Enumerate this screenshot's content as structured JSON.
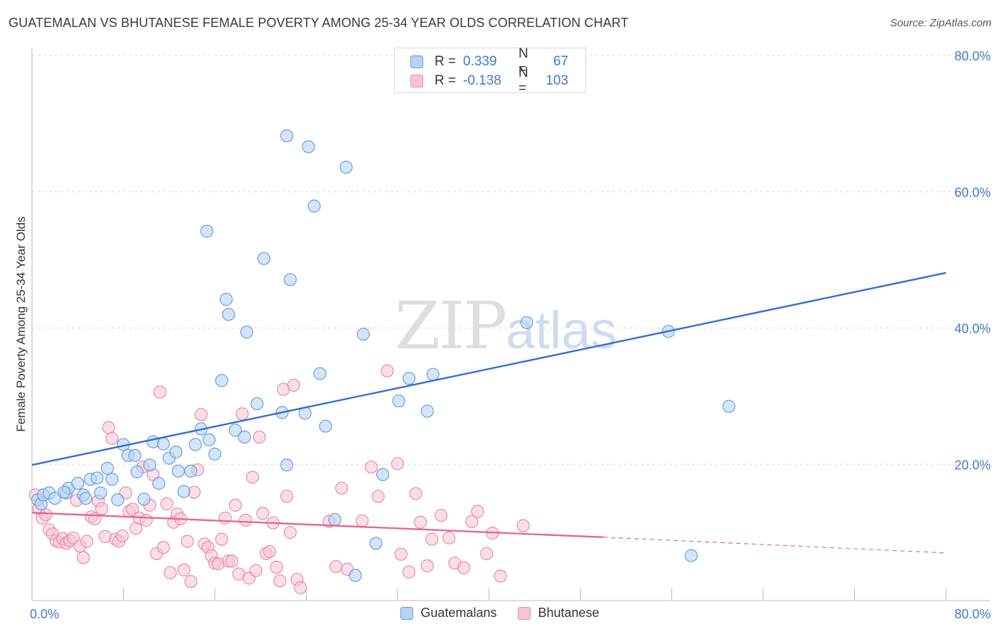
{
  "header": {
    "title": "GUATEMALAN VS BHUTANESE FEMALE POVERTY AMONG 25-34 YEAR OLDS CORRELATION CHART",
    "source": "Source: ZipAtlas.com"
  },
  "watermark": {
    "zip": "ZIP",
    "atlas": "atlas"
  },
  "legend": {
    "rows": [
      {
        "r_label": "R =",
        "r_value": "0.339",
        "n_label": "N =",
        "n_value": "67",
        "color": "#a9c8ef"
      },
      {
        "r_label": "R =",
        "r_value": "-0.138",
        "n_label": "N =",
        "n_value": "103",
        "color": "#f5b6c9"
      }
    ]
  },
  "bottom_legend": {
    "items": [
      {
        "label": "Guatemalans",
        "color": "#a9c8ef"
      },
      {
        "label": "Bhutanese",
        "color": "#f5b6c9"
      }
    ]
  },
  "colors": {
    "blue_fill": "#b8d3f3",
    "blue_stroke": "#6a9ee0",
    "blue_line": "#2f72cc",
    "pink_fill": "#f8c4d4",
    "pink_stroke": "#e98aab",
    "pink_line": "#e2689a",
    "grid": "#dcdcdc",
    "tick_text": "#3d7cc9"
  },
  "chart_data": {
    "type": "scatter",
    "title": "GUATEMALAN VS BHUTANESE FEMALE POVERTY AMONG 25-34 YEAR OLDS CORRELATION CHART",
    "xlabel": "",
    "ylabel": "Female Poverty Among 25-34 Year Olds",
    "xlim": [
      0,
      80
    ],
    "ylim": [
      0,
      80
    ],
    "x_tick_labels": [
      "0.0%",
      "80.0%"
    ],
    "y_tick_values": [
      20,
      40,
      60,
      80
    ],
    "y_tick_labels": [
      "20.0%",
      "40.0%",
      "60.0%",
      "80.0%"
    ],
    "grid": true,
    "series": [
      {
        "name": "Guatemalans",
        "r": 0.339,
        "n": 67,
        "trend": {
          "x": [
            0,
            80
          ],
          "y": [
            19.9,
            48.1
          ]
        },
        "points": [
          [
            0.5,
            14.8
          ],
          [
            0.8,
            14.2
          ],
          [
            1.0,
            15.5
          ],
          [
            1.5,
            15.8
          ],
          [
            2.0,
            15.0
          ],
          [
            3.0,
            15.8
          ],
          [
            3.2,
            16.5
          ],
          [
            4.0,
            17.2
          ],
          [
            4.5,
            15.5
          ],
          [
            4.7,
            15.0
          ],
          [
            5.1,
            17.8
          ],
          [
            5.7,
            18.0
          ],
          [
            6.0,
            15.8
          ],
          [
            6.6,
            19.4
          ],
          [
            7.0,
            17.8
          ],
          [
            7.5,
            14.8
          ],
          [
            8.0,
            22.9
          ],
          [
            8.4,
            21.3
          ],
          [
            9.0,
            21.3
          ],
          [
            9.2,
            18.9
          ],
          [
            9.8,
            14.9
          ],
          [
            10.3,
            19.9
          ],
          [
            10.6,
            23.3
          ],
          [
            11.1,
            17.2
          ],
          [
            11.5,
            23.0
          ],
          [
            12.0,
            20.9
          ],
          [
            12.6,
            21.8
          ],
          [
            12.8,
            19.0
          ],
          [
            13.3,
            16.0
          ],
          [
            13.9,
            19.0
          ],
          [
            14.3,
            22.9
          ],
          [
            14.8,
            25.2
          ],
          [
            15.5,
            23.6
          ],
          [
            15.3,
            54.2
          ],
          [
            16.0,
            21.5
          ],
          [
            16.6,
            32.3
          ],
          [
            17.0,
            44.2
          ],
          [
            17.2,
            42.0
          ],
          [
            17.8,
            25.0
          ],
          [
            18.6,
            24.0
          ],
          [
            18.8,
            39.4
          ],
          [
            19.7,
            28.9
          ],
          [
            20.3,
            50.2
          ],
          [
            21.9,
            27.6
          ],
          [
            22.3,
            19.9
          ],
          [
            22.6,
            47.1
          ],
          [
            22.3,
            68.2
          ],
          [
            23.9,
            27.5
          ],
          [
            24.2,
            66.6
          ],
          [
            24.7,
            57.9
          ],
          [
            25.2,
            33.3
          ],
          [
            25.7,
            25.6
          ],
          [
            26.5,
            11.9
          ],
          [
            27.5,
            63.6
          ],
          [
            28.3,
            3.7
          ],
          [
            29.0,
            39.1
          ],
          [
            30.1,
            8.4
          ],
          [
            30.7,
            18.5
          ],
          [
            32.1,
            29.3
          ],
          [
            33.0,
            32.6
          ],
          [
            34.6,
            27.8
          ],
          [
            35.1,
            33.2
          ],
          [
            43.3,
            40.8
          ],
          [
            55.7,
            39.5
          ],
          [
            61.0,
            28.5
          ],
          [
            57.7,
            6.6
          ],
          [
            2.8,
            15.9
          ]
        ]
      },
      {
        "name": "Bhutanese",
        "r": -0.138,
        "n": 103,
        "trend": {
          "x": [
            0,
            50
          ],
          "y": [
            12.9,
            9.3
          ]
        },
        "trend_dashed": {
          "x": [
            50,
            80
          ],
          "y": [
            9.3,
            7.0
          ]
        },
        "points": [
          [
            0.3,
            15.5
          ],
          [
            0.6,
            13.5
          ],
          [
            0.9,
            12.1
          ],
          [
            1.2,
            12.6
          ],
          [
            1.5,
            10.4
          ],
          [
            1.8,
            9.8
          ],
          [
            2.1,
            8.8
          ],
          [
            2.4,
            8.6
          ],
          [
            2.7,
            9.1
          ],
          [
            3.0,
            8.4
          ],
          [
            3.3,
            8.8
          ],
          [
            3.6,
            9.2
          ],
          [
            3.9,
            14.7
          ],
          [
            4.2,
            8.0
          ],
          [
            4.5,
            6.3
          ],
          [
            4.8,
            8.7
          ],
          [
            5.2,
            12.3
          ],
          [
            5.5,
            12.0
          ],
          [
            5.8,
            14.6
          ],
          [
            6.1,
            13.5
          ],
          [
            6.4,
            9.4
          ],
          [
            6.7,
            25.4
          ],
          [
            7.0,
            23.8
          ],
          [
            7.3,
            9.0
          ],
          [
            7.6,
            8.7
          ],
          [
            7.9,
            9.5
          ],
          [
            8.2,
            15.8
          ],
          [
            8.5,
            13.1
          ],
          [
            8.8,
            13.4
          ],
          [
            9.1,
            10.6
          ],
          [
            9.4,
            12.1
          ],
          [
            9.7,
            19.6
          ],
          [
            10.0,
            11.8
          ],
          [
            10.3,
            14.0
          ],
          [
            10.6,
            18.5
          ],
          [
            10.9,
            6.9
          ],
          [
            11.2,
            30.6
          ],
          [
            11.5,
            7.8
          ],
          [
            11.8,
            14.2
          ],
          [
            12.1,
            4.1
          ],
          [
            12.4,
            11.5
          ],
          [
            12.7,
            12.7
          ],
          [
            13.0,
            12.0
          ],
          [
            13.3,
            4.5
          ],
          [
            13.6,
            8.7
          ],
          [
            13.9,
            2.8
          ],
          [
            14.2,
            15.9
          ],
          [
            14.5,
            19.2
          ],
          [
            14.8,
            27.3
          ],
          [
            15.1,
            8.3
          ],
          [
            15.4,
            7.8
          ],
          [
            15.7,
            6.6
          ],
          [
            16.0,
            5.5
          ],
          [
            16.3,
            5.4
          ],
          [
            16.6,
            9.0
          ],
          [
            16.9,
            12.1
          ],
          [
            17.2,
            5.8
          ],
          [
            17.5,
            5.8
          ],
          [
            17.8,
            14.0
          ],
          [
            18.1,
            3.9
          ],
          [
            18.4,
            27.4
          ],
          [
            18.7,
            11.8
          ],
          [
            19.0,
            3.3
          ],
          [
            19.3,
            18.1
          ],
          [
            19.6,
            4.4
          ],
          [
            19.9,
            24.0
          ],
          [
            20.2,
            12.8
          ],
          [
            20.5,
            6.9
          ],
          [
            20.8,
            7.2
          ],
          [
            21.1,
            11.4
          ],
          [
            21.4,
            4.9
          ],
          [
            21.7,
            2.9
          ],
          [
            22.0,
            31.0
          ],
          [
            22.3,
            15.3
          ],
          [
            22.6,
            10.0
          ],
          [
            22.9,
            31.6
          ],
          [
            23.2,
            3.1
          ],
          [
            23.5,
            1.9
          ],
          [
            26.0,
            11.6
          ],
          [
            26.6,
            5.0
          ],
          [
            27.1,
            16.5
          ],
          [
            27.6,
            4.6
          ],
          [
            28.9,
            11.7
          ],
          [
            29.7,
            19.6
          ],
          [
            30.3,
            15.3
          ],
          [
            31.1,
            33.7
          ],
          [
            32.0,
            20.1
          ],
          [
            32.3,
            6.8
          ],
          [
            33.0,
            4.2
          ],
          [
            33.6,
            15.7
          ],
          [
            34.0,
            11.5
          ],
          [
            34.6,
            5.1
          ],
          [
            35.0,
            9.0
          ],
          [
            35.8,
            12.5
          ],
          [
            36.5,
            9.2
          ],
          [
            37.0,
            5.5
          ],
          [
            37.8,
            4.8
          ],
          [
            38.5,
            11.6
          ],
          [
            39.0,
            13.1
          ],
          [
            39.8,
            6.9
          ],
          [
            40.3,
            9.9
          ],
          [
            41.0,
            3.6
          ],
          [
            43.0,
            11.0
          ]
        ]
      }
    ]
  }
}
